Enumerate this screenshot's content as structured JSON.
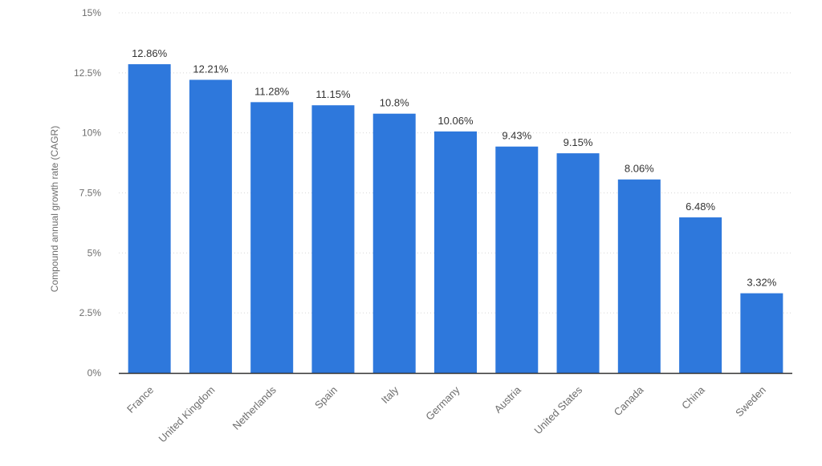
{
  "chart_data": {
    "type": "bar",
    "title": "",
    "xlabel": "",
    "ylabel": "Compound annual growth rate (CAGR)",
    "categories": [
      "France",
      "United Kingdom",
      "Netherlands",
      "Spain",
      "Italy",
      "Germany",
      "Austria",
      "United States",
      "Canada",
      "China",
      "Sweden"
    ],
    "values": [
      12.86,
      12.21,
      11.28,
      11.15,
      10.8,
      10.06,
      9.43,
      9.15,
      8.06,
      6.48,
      3.32
    ],
    "data_labels": [
      "12.86%",
      "12.21%",
      "11.28%",
      "11.15%",
      "10.8%",
      "10.06%",
      "9.43%",
      "9.15%",
      "8.06%",
      "6.48%",
      "3.32%"
    ],
    "ylim": [
      0,
      15
    ],
    "yticks": [
      0,
      2.5,
      5,
      7.5,
      10,
      12.5,
      15
    ],
    "ytick_labels": [
      "0%",
      "2.5%",
      "5%",
      "7.5%",
      "10%",
      "12.5%",
      "15%"
    ],
    "grid": true,
    "bar_color": "#2e78dc",
    "grid_color": "#d8d8d8",
    "axis_color": "#333333"
  }
}
